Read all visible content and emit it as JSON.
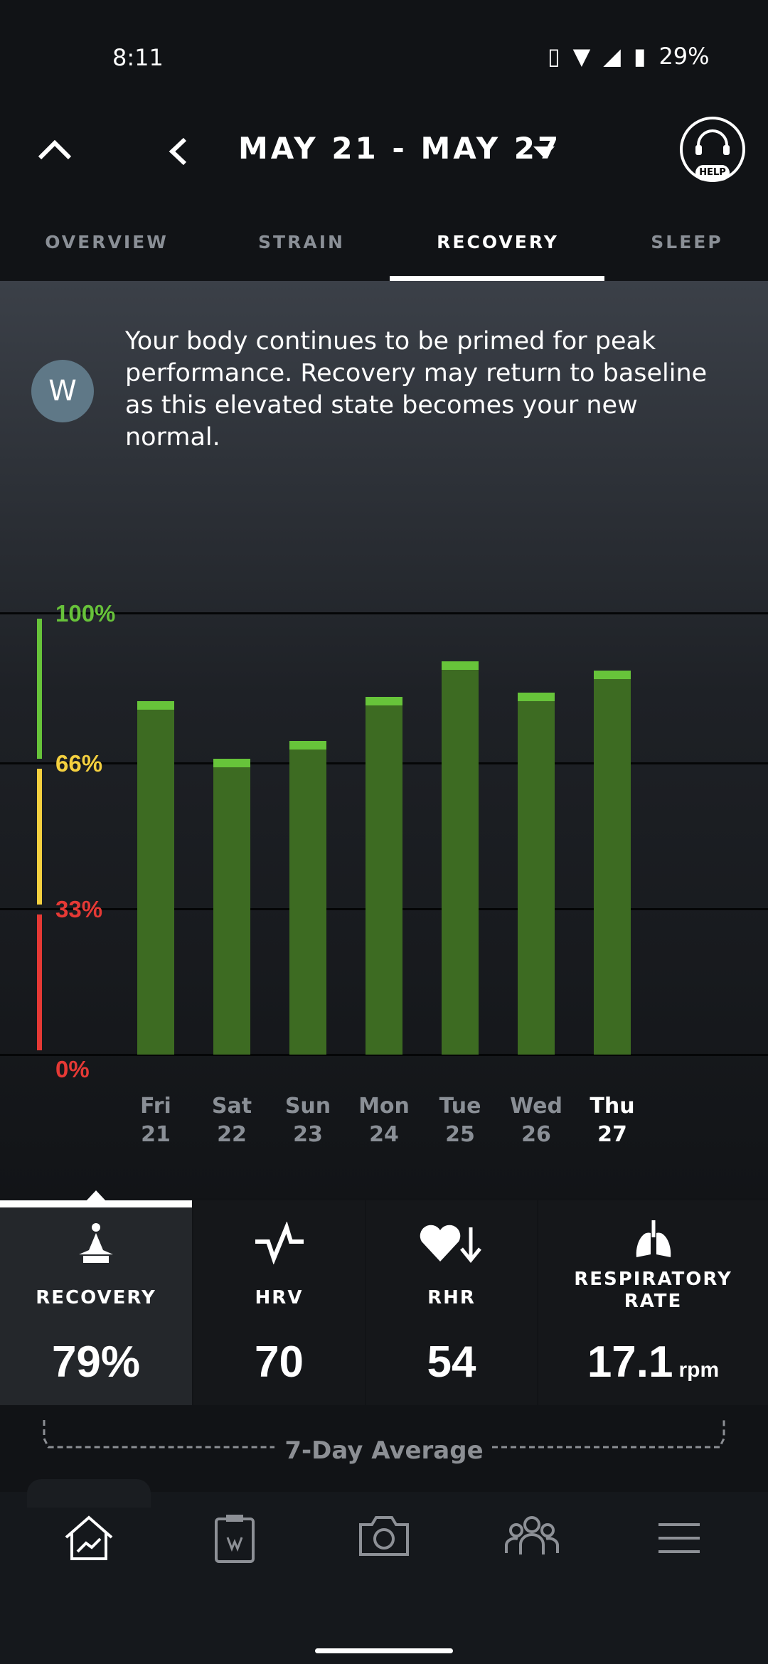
{
  "status": {
    "time": "8:11",
    "battery": "29%"
  },
  "header": {
    "title": "MAY 21 - MAY 27",
    "help_label": "HELP"
  },
  "tabs": [
    {
      "label": "OVERVIEW"
    },
    {
      "label": "STRAIN"
    },
    {
      "label": "RECOVERY",
      "active": true
    },
    {
      "label": "SLEEP"
    }
  ],
  "message": "Your body continues to be primed for peak performance. Recovery may return to baseline as this elevated state becomes your new normal.",
  "chart_data": {
    "type": "bar",
    "categories": [
      "Fri 21",
      "Sat 22",
      "Sun 23",
      "Mon 24",
      "Tue 25",
      "Wed 26",
      "Thu 27"
    ],
    "days": [
      {
        "d": "Fri",
        "n": "21"
      },
      {
        "d": "Sat",
        "n": "22"
      },
      {
        "d": "Sun",
        "n": "23"
      },
      {
        "d": "Mon",
        "n": "24"
      },
      {
        "d": "Tue",
        "n": "25"
      },
      {
        "d": "Wed",
        "n": "26"
      },
      {
        "d": "Thu",
        "n": "27"
      }
    ],
    "values": [
      80,
      67,
      71,
      81,
      89,
      82,
      87
    ],
    "ylim": [
      0,
      100
    ],
    "ticks": [
      {
        "label": "100%",
        "value": 100,
        "color": "#67c23a"
      },
      {
        "label": "66%",
        "value": 66,
        "color": "#f4d03f"
      },
      {
        "label": "33%",
        "value": 33,
        "color": "#e53935"
      },
      {
        "label": "0%",
        "value": 0,
        "color": "#e53935"
      }
    ],
    "bar_color": "#3d6b22",
    "cap_color": "#67c43a",
    "grid": true
  },
  "metrics": [
    {
      "label": "RECOVERY",
      "value": "79%"
    },
    {
      "label": "HRV",
      "value": "70"
    },
    {
      "label": "RHR",
      "value": "54"
    },
    {
      "label": "RESPIRATORY RATE",
      "value": "17.1",
      "unit": "rpm"
    }
  ],
  "average_label": "7-Day Average"
}
